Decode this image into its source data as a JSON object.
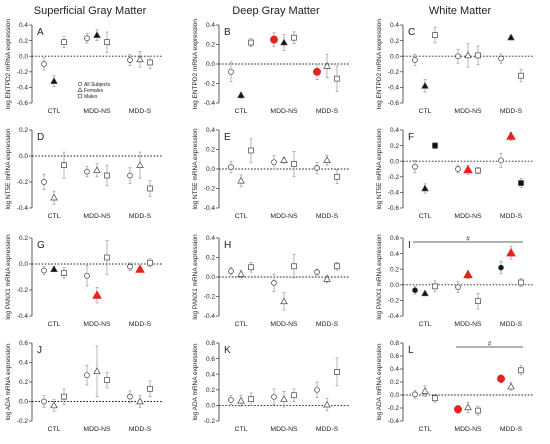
{
  "column_titles": [
    "Superficial Gray Matter",
    "Deep Gray Matter",
    "White Matter"
  ],
  "legend": [
    "All Subjects",
    "Females",
    "Males"
  ],
  "colors": {
    "highlight": "#e8211f",
    "marker": "#111111",
    "open_fill": "#ffffff",
    "errorbar": "#999999"
  },
  "chart_data": [
    {
      "id": "A",
      "type": "scatter",
      "row": 0,
      "col": 0,
      "letter": "A",
      "ylabel": "log ENTPD2 mRNA expression",
      "ylim": [
        -0.6,
        0.4
      ],
      "yticks": [
        "0.4",
        "0.2",
        "0.0",
        "-0.2",
        "-0.4",
        "-0.6"
      ],
      "categories": [
        "CTL",
        "MDD-NS",
        "MDD-S"
      ],
      "legend_shown": true,
      "points": [
        {
          "cat": 0,
          "g": "all",
          "v": -0.1,
          "e": 0.08,
          "f": false
        },
        {
          "cat": 0,
          "g": "female",
          "v": -0.32,
          "e": 0.07,
          "f": true
        },
        {
          "cat": 0,
          "g": "male",
          "v": 0.18,
          "e": 0.07,
          "f": false
        },
        {
          "cat": 1,
          "g": "all",
          "v": 0.23,
          "e": 0.06,
          "f": false
        },
        {
          "cat": 1,
          "g": "female",
          "v": 0.27,
          "e": 0.07,
          "f": true
        },
        {
          "cat": 1,
          "g": "male",
          "v": 0.18,
          "e": 0.13,
          "f": false
        },
        {
          "cat": 2,
          "g": "all",
          "v": -0.05,
          "e": 0.07,
          "f": false
        },
        {
          "cat": 2,
          "g": "female",
          "v": -0.04,
          "e": 0.1,
          "f": false
        },
        {
          "cat": 2,
          "g": "male",
          "v": -0.08,
          "e": 0.08,
          "f": false
        }
      ]
    },
    {
      "id": "B",
      "type": "scatter",
      "row": 0,
      "col": 1,
      "letter": "B",
      "ylabel": "log ENTPD2 mRNA expression",
      "ylim": [
        -0.4,
        0.4
      ],
      "yticks": [
        "0.4",
        "0.2",
        "0.0",
        "-0.2",
        "-0.4"
      ],
      "categories": [
        "CTL",
        "MDD-NS",
        "MDD-S"
      ],
      "points": [
        {
          "cat": 0,
          "g": "all",
          "v": -0.08,
          "e": 0.1,
          "f": false
        },
        {
          "cat": 0,
          "g": "female",
          "v": -0.32,
          "e": 0.03,
          "f": true
        },
        {
          "cat": 0,
          "g": "male",
          "v": 0.22,
          "e": 0.04,
          "f": false
        },
        {
          "cat": 1,
          "g": "all",
          "v": 0.25,
          "e": 0.07,
          "f": true,
          "h": true
        },
        {
          "cat": 1,
          "g": "female",
          "v": 0.22,
          "e": 0.08,
          "f": true
        },
        {
          "cat": 1,
          "g": "male",
          "v": 0.27,
          "e": 0.06,
          "f": false
        },
        {
          "cat": 2,
          "g": "all",
          "v": -0.08,
          "e": 0.08,
          "f": true,
          "h": true
        },
        {
          "cat": 2,
          "g": "female",
          "v": -0.02,
          "e": 0.12,
          "f": false
        },
        {
          "cat": 2,
          "g": "male",
          "v": -0.15,
          "e": 0.13,
          "f": false
        }
      ]
    },
    {
      "id": "C",
      "type": "scatter",
      "row": 0,
      "col": 2,
      "letter": "C",
      "ylabel": "log ENTPD2 mRNA expression",
      "ylim": [
        -0.6,
        0.4
      ],
      "yticks": [
        "0.4",
        "0.2",
        "0.0",
        "-0.2",
        "-0.4",
        "-0.6"
      ],
      "categories": [
        "CTL",
        "MDD-NS",
        "MDD-S"
      ],
      "points": [
        {
          "cat": 0,
          "g": "all",
          "v": -0.05,
          "e": 0.07,
          "f": false
        },
        {
          "cat": 0,
          "g": "female",
          "v": -0.38,
          "e": 0.08,
          "f": true
        },
        {
          "cat": 0,
          "g": "male",
          "v": 0.27,
          "e": 0.1,
          "f": false
        },
        {
          "cat": 1,
          "g": "all",
          "v": 0.0,
          "e": 0.09,
          "f": false
        },
        {
          "cat": 1,
          "g": "female",
          "v": 0.01,
          "e": 0.15,
          "f": false
        },
        {
          "cat": 1,
          "g": "male",
          "v": 0.01,
          "e": 0.12,
          "f": false
        },
        {
          "cat": 2,
          "g": "all",
          "v": -0.03,
          "e": 0.06,
          "f": false
        },
        {
          "cat": 2,
          "g": "female",
          "v": 0.24,
          "e": 0.03,
          "f": true
        },
        {
          "cat": 2,
          "g": "male",
          "v": -0.25,
          "e": 0.08,
          "f": false
        }
      ]
    },
    {
      "id": "D",
      "type": "scatter",
      "row": 1,
      "col": 0,
      "letter": "D",
      "ylabel": "log NT5E mRNA expression",
      "ylim": [
        -0.4,
        0.2
      ],
      "yticks": [
        "0.2",
        "0.0",
        "-0.2",
        "-0.4"
      ],
      "categories": [
        "CTL",
        "MDD-NS",
        "MDD-S"
      ],
      "points": [
        {
          "cat": 0,
          "g": "all",
          "v": -0.2,
          "e": 0.06,
          "f": false
        },
        {
          "cat": 0,
          "g": "female",
          "v": -0.32,
          "e": 0.05,
          "f": false
        },
        {
          "cat": 0,
          "g": "male",
          "v": -0.07,
          "e": 0.1,
          "f": false
        },
        {
          "cat": 1,
          "g": "all",
          "v": -0.12,
          "e": 0.04,
          "f": false
        },
        {
          "cat": 1,
          "g": "female",
          "v": -0.11,
          "e": 0.05,
          "f": false
        },
        {
          "cat": 1,
          "g": "male",
          "v": -0.15,
          "e": 0.08,
          "f": false
        },
        {
          "cat": 2,
          "g": "all",
          "v": -0.15,
          "e": 0.06,
          "f": false
        },
        {
          "cat": 2,
          "g": "female",
          "v": -0.07,
          "e": 0.1,
          "f": false
        },
        {
          "cat": 2,
          "g": "male",
          "v": -0.25,
          "e": 0.06,
          "f": false
        }
      ]
    },
    {
      "id": "E",
      "type": "scatter",
      "row": 1,
      "col": 1,
      "letter": "E",
      "ylabel": "log NT5E mRNA expression",
      "ylim": [
        -0.4,
        0.4
      ],
      "yticks": [
        "0.4",
        "0.2",
        "0.0",
        "-0.2",
        "-0.4"
      ],
      "categories": [
        "CTL",
        "MDD-NS",
        "MDD-S"
      ],
      "points": [
        {
          "cat": 0,
          "g": "all",
          "v": 0.02,
          "e": 0.06,
          "f": false
        },
        {
          "cat": 0,
          "g": "female",
          "v": -0.12,
          "e": 0.06,
          "f": false
        },
        {
          "cat": 0,
          "g": "male",
          "v": 0.19,
          "e": 0.12,
          "f": false
        },
        {
          "cat": 1,
          "g": "all",
          "v": 0.07,
          "e": 0.07,
          "f": false
        },
        {
          "cat": 1,
          "g": "female",
          "v": 0.09,
          "e": 0.03,
          "f": false
        },
        {
          "cat": 1,
          "g": "male",
          "v": 0.05,
          "e": 0.13,
          "f": false
        },
        {
          "cat": 2,
          "g": "all",
          "v": 0.01,
          "e": 0.06,
          "f": false
        },
        {
          "cat": 2,
          "g": "female",
          "v": 0.09,
          "e": 0.05,
          "f": false
        },
        {
          "cat": 2,
          "g": "male",
          "v": -0.08,
          "e": 0.07,
          "f": false
        }
      ]
    },
    {
      "id": "F",
      "type": "scatter",
      "row": 1,
      "col": 2,
      "letter": "F",
      "ylabel": "log NT5E mRNA expression",
      "ylim": [
        -0.6,
        0.4
      ],
      "yticks": [
        "0.4",
        "0.2",
        "0.0",
        "-0.2",
        "-0.4",
        "-0.6"
      ],
      "categories": [
        "CTL",
        "MDD-NS",
        "MDD-S"
      ],
      "points": [
        {
          "cat": 0,
          "g": "all",
          "v": -0.07,
          "e": 0.08,
          "f": false
        },
        {
          "cat": 0,
          "g": "female",
          "v": -0.35,
          "e": 0.06,
          "f": true
        },
        {
          "cat": 0,
          "g": "male",
          "v": 0.2,
          "e": 0.04,
          "f": true
        },
        {
          "cat": 1,
          "g": "all",
          "v": -0.1,
          "e": 0.05,
          "f": false
        },
        {
          "cat": 1,
          "g": "female",
          "v": -0.11,
          "e": 0.06,
          "f": true,
          "h": true
        },
        {
          "cat": 1,
          "g": "male",
          "v": -0.12,
          "e": 0.04,
          "f": false
        },
        {
          "cat": 2,
          "g": "all",
          "v": 0.01,
          "e": 0.09,
          "f": false
        },
        {
          "cat": 2,
          "g": "female",
          "v": 0.32,
          "e": 0.05,
          "f": true,
          "h": true
        },
        {
          "cat": 2,
          "g": "male",
          "v": -0.28,
          "e": 0.06,
          "f": true
        }
      ]
    },
    {
      "id": "G",
      "type": "scatter",
      "row": 2,
      "col": 0,
      "letter": "G",
      "ylabel": "log PANX1 mRNA expression",
      "ylim": [
        -0.4,
        0.2
      ],
      "yticks": [
        "0.2",
        "0.0",
        "-0.2",
        "-0.4"
      ],
      "categories": [
        "CTL",
        "MDD-NS",
        "MDD-S"
      ],
      "points": [
        {
          "cat": 0,
          "g": "all",
          "v": -0.05,
          "e": 0.03,
          "f": false
        },
        {
          "cat": 0,
          "g": "female",
          "v": -0.04,
          "e": 0.02,
          "f": true
        },
        {
          "cat": 0,
          "g": "male",
          "v": -0.07,
          "e": 0.04,
          "f": false
        },
        {
          "cat": 1,
          "g": "all",
          "v": -0.09,
          "e": 0.08,
          "f": false
        },
        {
          "cat": 1,
          "g": "female",
          "v": -0.24,
          "e": 0.06,
          "f": true,
          "h": true
        },
        {
          "cat": 1,
          "g": "male",
          "v": 0.05,
          "e": 0.13,
          "f": false
        },
        {
          "cat": 2,
          "g": "all",
          "v": -0.02,
          "e": 0.03,
          "f": false
        },
        {
          "cat": 2,
          "g": "female",
          "v": -0.04,
          "e": 0.02,
          "f": true,
          "h": true
        },
        {
          "cat": 2,
          "g": "male",
          "v": 0.01,
          "e": 0.03,
          "f": false
        }
      ]
    },
    {
      "id": "H",
      "type": "scatter",
      "row": 2,
      "col": 1,
      "letter": "H",
      "ylabel": "log PANX1 mRNA expression",
      "ylim": [
        -0.4,
        0.4
      ],
      "yticks": [
        "0.4",
        "0.2",
        "0.0",
        "-0.2",
        "-0.4"
      ],
      "categories": [
        "CTL",
        "MDD-NS",
        "MDD-S"
      ],
      "points": [
        {
          "cat": 0,
          "g": "all",
          "v": 0.06,
          "e": 0.04,
          "f": false
        },
        {
          "cat": 0,
          "g": "female",
          "v": 0.03,
          "e": 0.04,
          "f": false
        },
        {
          "cat": 0,
          "g": "male",
          "v": 0.1,
          "e": 0.05,
          "f": false
        },
        {
          "cat": 1,
          "g": "all",
          "v": -0.06,
          "e": 0.09,
          "f": false
        },
        {
          "cat": 1,
          "g": "female",
          "v": -0.25,
          "e": 0.09,
          "f": false
        },
        {
          "cat": 1,
          "g": "male",
          "v": 0.11,
          "e": 0.12,
          "f": false
        },
        {
          "cat": 2,
          "g": "all",
          "v": 0.05,
          "e": 0.03,
          "f": false
        },
        {
          "cat": 2,
          "g": "female",
          "v": -0.02,
          "e": 0.04,
          "f": false
        },
        {
          "cat": 2,
          "g": "male",
          "v": 0.11,
          "e": 0.04,
          "f": false
        }
      ]
    },
    {
      "id": "I",
      "type": "scatter",
      "row": 2,
      "col": 2,
      "letter": "I",
      "ylabel": "log PANX1 mRNA expression",
      "ylim": [
        -0.4,
        0.6
      ],
      "yticks": [
        "0.6",
        "0.4",
        "0.2",
        "0.0",
        "-0.2",
        "-0.4"
      ],
      "categories": [
        "CTL",
        "MDD-NS",
        "MDD-S"
      ],
      "sig": {
        "label": "#",
        "from": 0,
        "to": 2
      },
      "points": [
        {
          "cat": 0,
          "g": "all",
          "v": -0.07,
          "e": 0.05,
          "f": true
        },
        {
          "cat": 0,
          "g": "female",
          "v": -0.11,
          "e": 0.03,
          "f": true
        },
        {
          "cat": 0,
          "g": "male",
          "v": -0.02,
          "e": 0.07,
          "f": false
        },
        {
          "cat": 1,
          "g": "all",
          "v": -0.03,
          "e": 0.07,
          "f": false
        },
        {
          "cat": 1,
          "g": "female",
          "v": 0.13,
          "e": 0.05,
          "f": true,
          "h": true
        },
        {
          "cat": 1,
          "g": "male",
          "v": -0.21,
          "e": 0.1,
          "f": false
        },
        {
          "cat": 2,
          "g": "all",
          "v": 0.22,
          "e": 0.08,
          "f": true
        },
        {
          "cat": 2,
          "g": "female",
          "v": 0.41,
          "e": 0.08,
          "f": true,
          "h": true
        },
        {
          "cat": 2,
          "g": "male",
          "v": 0.03,
          "e": 0.05,
          "f": false
        }
      ]
    },
    {
      "id": "J",
      "type": "scatter",
      "row": 3,
      "col": 0,
      "letter": "J",
      "ylabel": "log ADA mRNA expression",
      "ylim": [
        -0.2,
        0.6
      ],
      "yticks": [
        "0.6",
        "0.4",
        "0.2",
        "0.0",
        "-0.2"
      ],
      "categories": [
        "CTL",
        "MDD-NS",
        "MDD-S"
      ],
      "points": [
        {
          "cat": 0,
          "g": "all",
          "v": 0.0,
          "e": 0.06,
          "f": false
        },
        {
          "cat": 0,
          "g": "female",
          "v": -0.04,
          "e": 0.06,
          "f": false
        },
        {
          "cat": 0,
          "g": "male",
          "v": 0.05,
          "e": 0.08,
          "f": false
        },
        {
          "cat": 1,
          "g": "all",
          "v": 0.27,
          "e": 0.1,
          "f": false
        },
        {
          "cat": 1,
          "g": "female",
          "v": 0.31,
          "e": 0.26,
          "f": false
        },
        {
          "cat": 1,
          "g": "male",
          "v": 0.22,
          "e": 0.08,
          "f": false
        },
        {
          "cat": 2,
          "g": "all",
          "v": 0.05,
          "e": 0.06,
          "f": false
        },
        {
          "cat": 2,
          "g": "female",
          "v": 0.0,
          "e": 0.06,
          "f": false
        },
        {
          "cat": 2,
          "g": "male",
          "v": 0.13,
          "e": 0.08,
          "f": false
        }
      ]
    },
    {
      "id": "K",
      "type": "scatter",
      "row": 3,
      "col": 1,
      "letter": "K",
      "ylabel": "log ADA mRNA expression",
      "ylim": [
        -0.2,
        0.8
      ],
      "yticks": [
        "0.8",
        "0.6",
        "0.4",
        "0.2",
        "0.0",
        "-0.2"
      ],
      "categories": [
        "CTL",
        "MDD-NS",
        "MDD-S"
      ],
      "points": [
        {
          "cat": 0,
          "g": "all",
          "v": 0.07,
          "e": 0.06,
          "f": false
        },
        {
          "cat": 0,
          "g": "female",
          "v": 0.06,
          "e": 0.07,
          "f": false
        },
        {
          "cat": 0,
          "g": "male",
          "v": 0.08,
          "e": 0.08,
          "f": false
        },
        {
          "cat": 1,
          "g": "all",
          "v": 0.11,
          "e": 0.1,
          "f": false
        },
        {
          "cat": 1,
          "g": "female",
          "v": 0.08,
          "e": 0.1,
          "f": false
        },
        {
          "cat": 1,
          "g": "male",
          "v": 0.13,
          "e": 0.08,
          "f": false
        },
        {
          "cat": 2,
          "g": "all",
          "v": 0.2,
          "e": 0.1,
          "f": false
        },
        {
          "cat": 2,
          "g": "female",
          "v": 0.01,
          "e": 0.08,
          "f": false
        },
        {
          "cat": 2,
          "g": "male",
          "v": 0.43,
          "e": 0.18,
          "f": false
        }
      ]
    },
    {
      "id": "L",
      "type": "scatter",
      "row": 3,
      "col": 2,
      "letter": "L",
      "ylabel": "log ADA mRNA expression",
      "ylim": [
        -0.4,
        0.8
      ],
      "yticks": [
        "0.8",
        "0.6",
        "0.4",
        "0.2",
        "0.0",
        "-0.2",
        "-0.4"
      ],
      "categories": [
        "CTL",
        "MDD-NS",
        "MDD-S"
      ],
      "sig": {
        "label": "#",
        "from": 1,
        "to": 2
      },
      "points": [
        {
          "cat": 0,
          "g": "all",
          "v": 0.01,
          "e": 0.06,
          "f": false
        },
        {
          "cat": 0,
          "g": "female",
          "v": 0.06,
          "e": 0.08,
          "f": false
        },
        {
          "cat": 0,
          "g": "male",
          "v": -0.05,
          "e": 0.06,
          "f": false
        },
        {
          "cat": 1,
          "g": "all",
          "v": -0.22,
          "e": 0.06,
          "f": true,
          "h": true
        },
        {
          "cat": 1,
          "g": "female",
          "v": -0.19,
          "e": 0.08,
          "f": false
        },
        {
          "cat": 1,
          "g": "male",
          "v": -0.24,
          "e": 0.07,
          "f": false
        },
        {
          "cat": 2,
          "g": "all",
          "v": 0.25,
          "e": 0.06,
          "f": true,
          "h": true
        },
        {
          "cat": 2,
          "g": "female",
          "v": 0.13,
          "e": 0.06,
          "f": false
        },
        {
          "cat": 2,
          "g": "male",
          "v": 0.38,
          "e": 0.07,
          "f": false
        }
      ]
    }
  ]
}
